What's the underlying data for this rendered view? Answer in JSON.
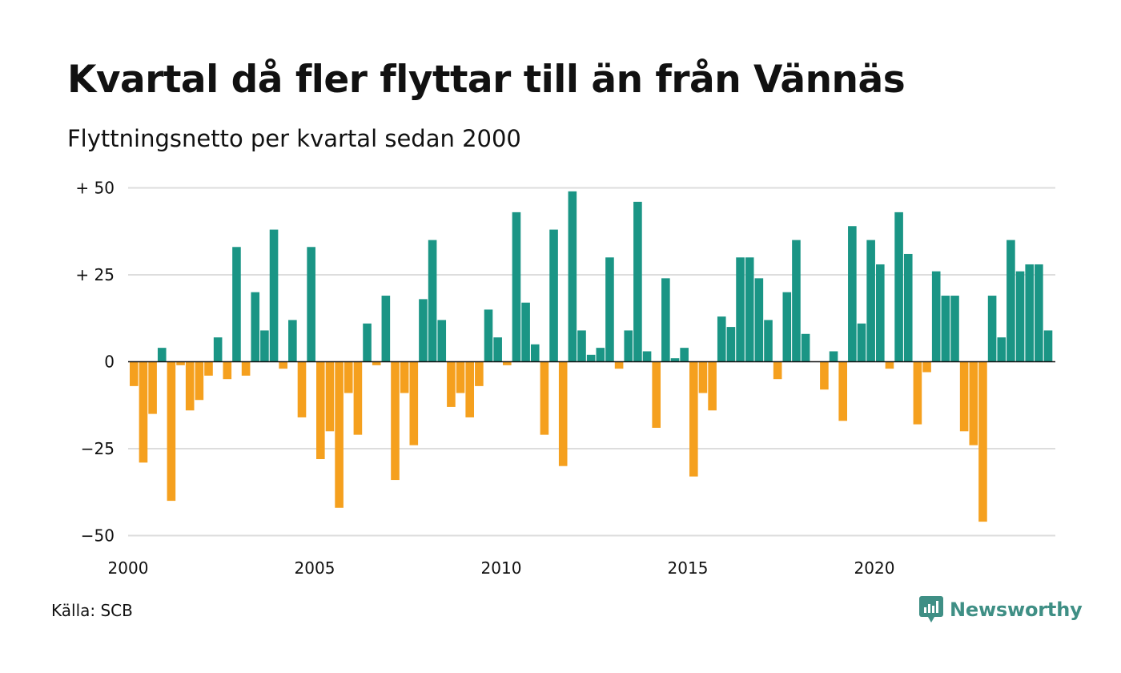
{
  "title": "Kvartal då fler flyttar till än från Vännäs",
  "subtitle": "Flyttningsnetto per kvartal sedan 2000",
  "source": "Källa: SCB",
  "brand": "Newsworthy",
  "colors": {
    "positive": "#1a9585",
    "negative": "#f5a01e",
    "grid": "#dddddd",
    "brand": "#3f8f85"
  },
  "chart_data": {
    "type": "bar",
    "title": "Kvartal då fler flyttar till än från Vännäs",
    "subtitle": "Flyttningsnetto per kvartal sedan 2000",
    "ylim": [
      -50,
      50
    ],
    "y_ticks": [
      {
        "value": 50,
        "label": "+ 50"
      },
      {
        "value": 25,
        "label": "+ 25"
      },
      {
        "value": 0,
        "label": "0"
      },
      {
        "value": -25,
        "label": "−25"
      },
      {
        "value": -50,
        "label": "−50"
      }
    ],
    "x_ticks": [
      {
        "year": 2000,
        "label": "2000"
      },
      {
        "year": 2005,
        "label": "2005"
      },
      {
        "year": 2010,
        "label": "2010"
      },
      {
        "year": 2015,
        "label": "2015"
      },
      {
        "year": 2020,
        "label": "2020"
      }
    ],
    "start_year": 2000,
    "grid": true,
    "legend": "none",
    "values": [
      -7,
      -29,
      -15,
      4,
      -40,
      -1,
      -14,
      -11,
      -4,
      7,
      -5,
      33,
      -4,
      20,
      9,
      38,
      -2,
      12,
      -16,
      33,
      -28,
      -20,
      -42,
      -9,
      -21,
      11,
      -1,
      19,
      -34,
      -9,
      -24,
      18,
      35,
      12,
      -13,
      -9,
      -16,
      -7,
      15,
      7,
      -1,
      43,
      17,
      5,
      -21,
      38,
      -30,
      49,
      9,
      2,
      4,
      30,
      -2,
      9,
      46,
      3,
      -19,
      24,
      1,
      4,
      -33,
      -9,
      -14,
      13,
      10,
      30,
      30,
      24,
      12,
      -5,
      20,
      35,
      8,
      0,
      -8,
      3,
      -17,
      39,
      11,
      35,
      28,
      -2,
      43,
      31,
      -18,
      -3,
      26,
      19,
      19,
      -20,
      -24,
      -46,
      19,
      7,
      35,
      26,
      28,
      28,
      9
    ]
  }
}
